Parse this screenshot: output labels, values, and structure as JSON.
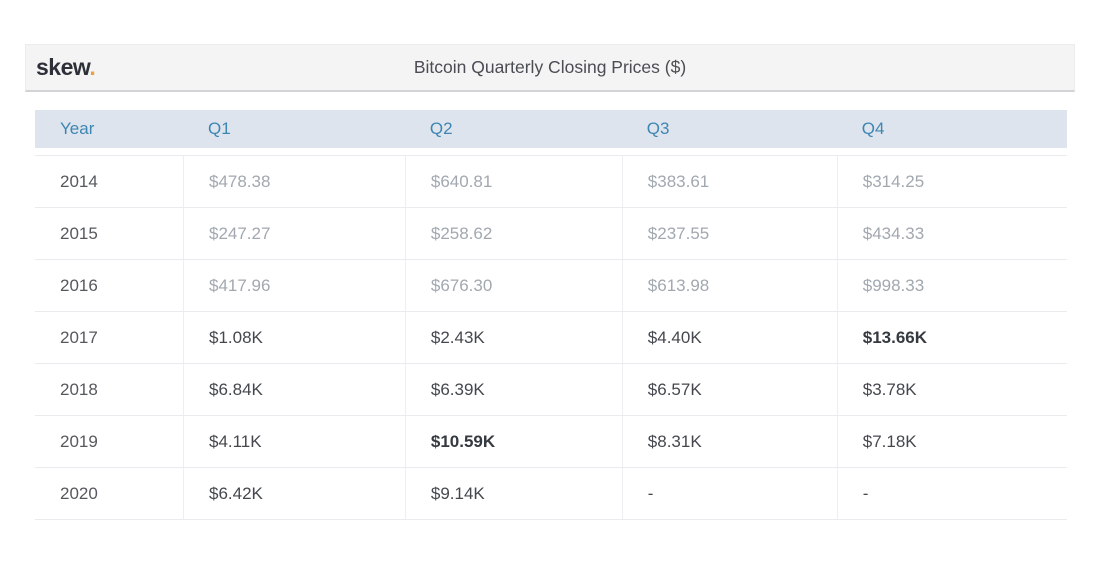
{
  "brand": {
    "name": "skew",
    "dot": "."
  },
  "header": {
    "title": "Bitcoin Quarterly Closing Prices ($)"
  },
  "table": {
    "columns": [
      "Year",
      "Q1",
      "Q2",
      "Q3",
      "Q4"
    ],
    "rows": [
      {
        "year": "2014",
        "values": [
          "$478.38",
          "$640.81",
          "$383.61",
          "$314.25"
        ],
        "muted": true,
        "strong": [
          false,
          false,
          false,
          false
        ]
      },
      {
        "year": "2015",
        "values": [
          "$247.27",
          "$258.62",
          "$237.55",
          "$434.33"
        ],
        "muted": true,
        "strong": [
          false,
          false,
          false,
          false
        ]
      },
      {
        "year": "2016",
        "values": [
          "$417.96",
          "$676.30",
          "$613.98",
          "$998.33"
        ],
        "muted": true,
        "strong": [
          false,
          false,
          false,
          false
        ]
      },
      {
        "year": "2017",
        "values": [
          "$1.08K",
          "$2.43K",
          "$4.40K",
          "$13.66K"
        ],
        "muted": false,
        "strong": [
          false,
          false,
          false,
          true
        ]
      },
      {
        "year": "2018",
        "values": [
          "$6.84K",
          "$6.39K",
          "$6.57K",
          "$3.78K"
        ],
        "muted": false,
        "strong": [
          false,
          false,
          false,
          false
        ]
      },
      {
        "year": "2019",
        "values": [
          "$4.11K",
          "$10.59K",
          "$8.31K",
          "$7.18K"
        ],
        "muted": false,
        "strong": [
          false,
          true,
          false,
          false
        ]
      },
      {
        "year": "2020",
        "values": [
          "$6.42K",
          "$9.14K",
          "-",
          "-"
        ],
        "muted": false,
        "strong": [
          false,
          false,
          false,
          false
        ]
      }
    ]
  },
  "chart_data": {
    "type": "table",
    "title": "Bitcoin Quarterly Closing Prices ($)",
    "columns": [
      "Year",
      "Q1",
      "Q2",
      "Q3",
      "Q4"
    ],
    "rows": [
      [
        "2014",
        478.38,
        640.81,
        383.61,
        314.25
      ],
      [
        "2015",
        247.27,
        258.62,
        237.55,
        434.33
      ],
      [
        "2016",
        417.96,
        676.3,
        613.98,
        998.33
      ],
      [
        "2017",
        1080,
        2430,
        4400,
        13660
      ],
      [
        "2018",
        6840,
        6390,
        6570,
        3780
      ],
      [
        "2019",
        4110,
        10590,
        8310,
        7180
      ],
      [
        "2020",
        6420,
        9140,
        null,
        null
      ]
    ]
  },
  "colors": {
    "brand_dot": "#e8a33c",
    "brand_text": "#2d3039",
    "topbar_bg": "#f4f4f4",
    "title_text": "#4b4d54",
    "header_bg": "#dee4ed",
    "header_text": "#3e86b2",
    "year_text": "#55595f",
    "value_text": "#44484e",
    "muted_value_text": "#a2a8b0",
    "h_border": "#e9ebee",
    "v_border": "#eceef1"
  }
}
